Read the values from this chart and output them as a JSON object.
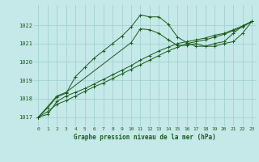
{
  "background_color": "#c5e8e8",
  "grid_color": "#9ecece",
  "line_color": "#1a5c1a",
  "xlabel": "Graphe pression niveau de la mer (hPa)",
  "xlim": [
    -0.5,
    23.5
  ],
  "ylim": [
    1016.5,
    1023.1
  ],
  "yticks": [
    1017,
    1018,
    1019,
    1020,
    1021,
    1022
  ],
  "xticks": [
    0,
    1,
    2,
    3,
    4,
    5,
    6,
    7,
    8,
    9,
    10,
    11,
    12,
    13,
    14,
    15,
    16,
    17,
    18,
    19,
    20,
    21,
    22,
    23
  ],
  "series1_x": [
    0,
    1,
    2,
    3,
    4,
    5,
    6,
    7,
    8,
    9,
    10,
    11,
    12,
    13,
    14,
    15,
    16,
    17,
    18,
    19,
    20,
    21,
    22,
    23
  ],
  "series1": [
    1017.0,
    1017.5,
    1018.1,
    1018.3,
    1019.2,
    1019.7,
    1020.2,
    1020.6,
    1021.0,
    1021.4,
    1021.9,
    1022.55,
    1022.45,
    1022.45,
    1022.05,
    1021.35,
    1021.05,
    1020.85,
    1020.85,
    1021.0,
    1021.1,
    1021.55,
    1021.95,
    1022.2
  ],
  "series2_x": [
    0,
    2,
    3,
    10,
    11,
    12,
    13,
    14,
    15,
    16,
    17,
    18,
    19,
    20,
    21,
    22,
    23
  ],
  "series2": [
    1017.0,
    1018.15,
    1018.35,
    1021.05,
    1021.8,
    1021.75,
    1021.55,
    1021.2,
    1020.9,
    1020.9,
    1021.0,
    1020.85,
    1020.85,
    1021.0,
    1021.1,
    1021.55,
    1022.2
  ],
  "series3_x": [
    0,
    1,
    2,
    3,
    4,
    5,
    6,
    7,
    8,
    9,
    10,
    11,
    12,
    13,
    14,
    15,
    16,
    17,
    18,
    19,
    20,
    21,
    22,
    23
  ],
  "series3": [
    1017.0,
    1017.15,
    1017.85,
    1018.15,
    1018.35,
    1018.55,
    1018.8,
    1019.05,
    1019.3,
    1019.55,
    1019.8,
    1020.1,
    1020.35,
    1020.6,
    1020.8,
    1021.0,
    1021.1,
    1021.2,
    1021.3,
    1021.45,
    1021.55,
    1021.75,
    1021.95,
    1022.2
  ],
  "series4_x": [
    0,
    1,
    2,
    3,
    4,
    5,
    6,
    7,
    8,
    9,
    10,
    11,
    12,
    13,
    14,
    15,
    16,
    17,
    18,
    19,
    20,
    21,
    22,
    23
  ],
  "series4": [
    1017.0,
    1017.3,
    1017.7,
    1017.9,
    1018.15,
    1018.4,
    1018.65,
    1018.85,
    1019.1,
    1019.35,
    1019.6,
    1019.85,
    1020.1,
    1020.35,
    1020.6,
    1020.8,
    1021.0,
    1021.1,
    1021.2,
    1021.35,
    1021.5,
    1021.7,
    1021.9,
    1022.2
  ]
}
